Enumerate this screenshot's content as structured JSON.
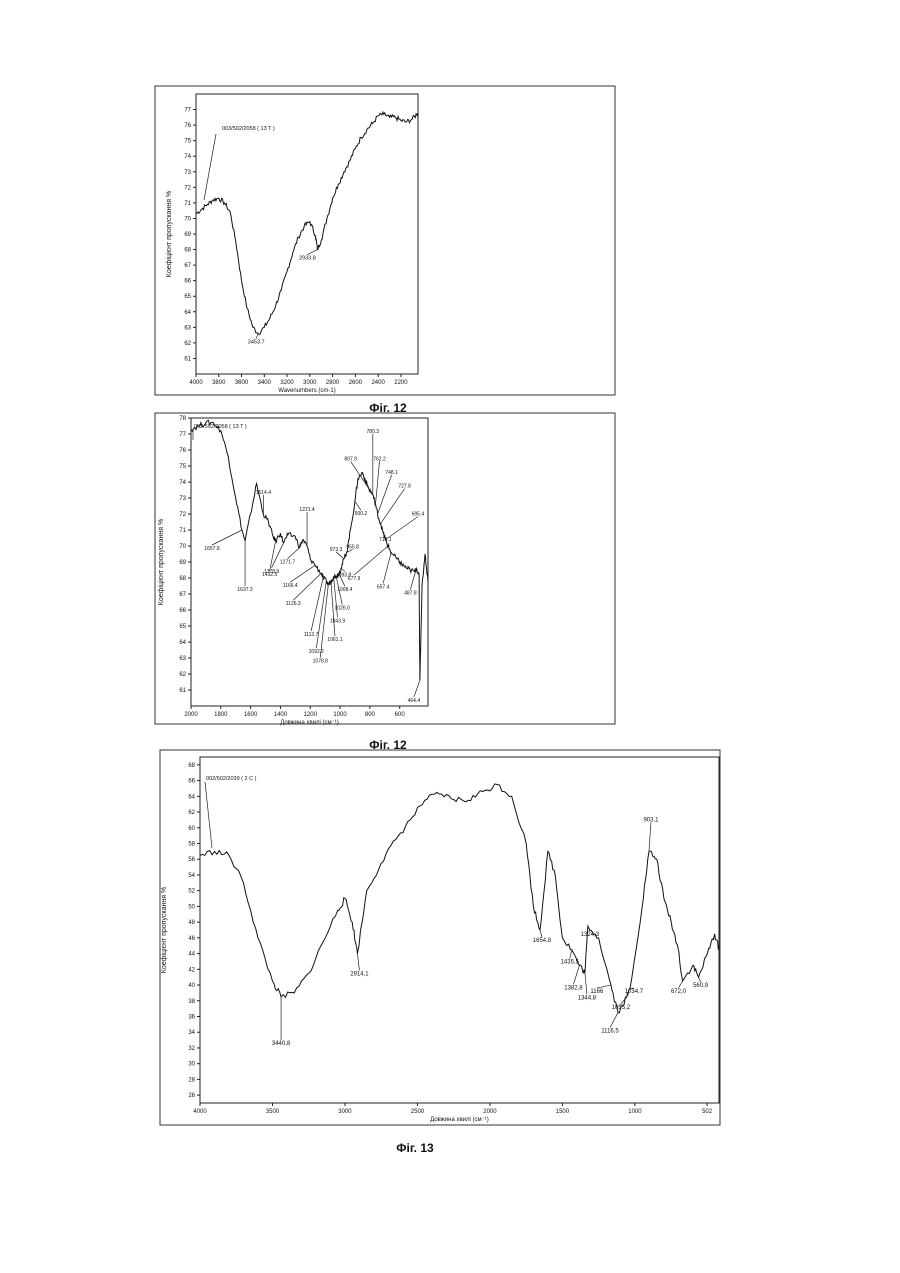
{
  "chart_data": [
    {
      "type": "line",
      "caption": "Фіг. 12",
      "ylabel": "Коефіцієнт пропускання %",
      "xlabel": "Wavenumbers (cm-1)",
      "xlim": [
        4000,
        2050
      ],
      "ylim": [
        60,
        78
      ],
      "xticks": [
        4000,
        3800,
        3600,
        3400,
        3200,
        3000,
        2800,
        2600,
        2400,
        2200
      ],
      "yticks": [
        61,
        62,
        63,
        64,
        65,
        66,
        67,
        68,
        69,
        70,
        71,
        72,
        73,
        74,
        75,
        76,
        77
      ],
      "sample": "003/502/2058 ( 13 T )",
      "series": [
        {
          "x": [
            4000,
            3950,
            3900,
            3850,
            3800,
            3750,
            3700,
            3650,
            3600,
            3550,
            3500,
            3453.7,
            3400,
            3350,
            3300,
            3250,
            3200,
            3150,
            3100,
            3050,
            3000,
            2950,
            2933.8,
            2900,
            2850,
            2800,
            2750,
            2700,
            2650,
            2600,
            2550,
            2500,
            2450,
            2400,
            2350,
            2300,
            2250,
            2200,
            2150,
            2100,
            2050
          ],
          "y": [
            70.3,
            70.6,
            70.9,
            71.2,
            71.3,
            71.0,
            70.4,
            68.5,
            66.0,
            64.2,
            63.0,
            62.6,
            63.0,
            63.6,
            64.4,
            65.4,
            66.6,
            67.8,
            68.8,
            69.5,
            69.8,
            68.9,
            68.0,
            68.6,
            70.0,
            71.3,
            72.2,
            73.0,
            73.7,
            74.5,
            75.2,
            75.7,
            76.1,
            76.6,
            76.7,
            76.5,
            76.5,
            76.3,
            76.2,
            76.4,
            76.8
          ]
        }
      ],
      "annotations": [
        {
          "label": "3453.7",
          "x": 3453.7
        },
        {
          "label": "2933.8",
          "x": 2933.8
        }
      ]
    },
    {
      "type": "line",
      "caption": "Фіг. 12",
      "ylabel": "Коефіцієнт пропускання %",
      "xlabel": "Довжина хвилі (см⁻¹)",
      "xlim": [
        2000,
        410
      ],
      "ylim": [
        60,
        78
      ],
      "xticks": [
        2000,
        1800,
        1600,
        1400,
        1200,
        1000,
        800,
        600
      ],
      "yticks": [
        61,
        62,
        63,
        64,
        65,
        66,
        67,
        68,
        69,
        70,
        71,
        72,
        73,
        74,
        75,
        76,
        77,
        78
      ],
      "sample": "002/502/2058 ( 13 T )",
      "series": [
        {
          "x": [
            2000,
            1950,
            1900,
            1850,
            1800,
            1750,
            1700,
            1657.8,
            1637.3,
            1600,
            1560,
            1514.4,
            1480,
            1450,
            1432.5,
            1400,
            1378.9,
            1350,
            1300,
            1271.7,
            1250,
            1221.4,
            1200,
            1166.4,
            1126.3,
            1113.7,
            1092.2,
            1078.8,
            1061.1,
            1043.9,
            1026.0,
            1008.4,
            993.8,
            973.3,
            955.8,
            930,
            900.2,
            880,
            850,
            830,
            807.9,
            780.3,
            762.2,
            748.1,
            727.8,
            710.1,
            695.4,
            677.9,
            657.4,
            620,
            600,
            580,
            550,
            530,
            500,
            487.8,
            470,
            464.4,
            450,
            430,
            410
          ],
          "y": [
            77.3,
            77.5,
            77.7,
            77.7,
            77.2,
            75.6,
            73.0,
            71.0,
            70.3,
            72.0,
            73.9,
            72.0,
            71.5,
            70.6,
            70.3,
            70.8,
            70.2,
            70.7,
            70.6,
            69.9,
            70.4,
            70.0,
            69.2,
            68.8,
            68.3,
            68.0,
            67.8,
            67.6,
            67.8,
            68.1,
            68.1,
            68.3,
            68.6,
            69.2,
            69.6,
            71.0,
            72.8,
            74.2,
            74.6,
            74.1,
            73.6,
            73.2,
            72.6,
            72.0,
            71.4,
            70.8,
            70.4,
            70.0,
            69.6,
            69.2,
            69.0,
            68.8,
            68.6,
            68.5,
            68.4,
            68.6,
            68.2,
            61.6,
            67.5,
            69.5,
            67.8
          ]
        }
      ],
      "annotations": [
        {
          "label": "1657.8",
          "x": 1657.8
        },
        {
          "label": "1637.3",
          "x": 1637.3
        },
        {
          "label": "1514.4",
          "x": 1514.4
        },
        {
          "label": "1432.5",
          "x": 1432.5
        },
        {
          "label": "1378.9",
          "x": 1378.9
        },
        {
          "label": "1271.7",
          "x": 1271.7
        },
        {
          "label": "1221.4",
          "x": 1221.4
        },
        {
          "label": "1166.4",
          "x": 1166.4
        },
        {
          "label": "1126.3",
          "x": 1126.3
        },
        {
          "label": "1113.7",
          "x": 1113.7
        },
        {
          "label": "1092.2",
          "x": 1092.2
        },
        {
          "label": "1078.8",
          "x": 1078.8
        },
        {
          "label": "1061.1",
          "x": 1061.1
        },
        {
          "label": "1043.9",
          "x": 1043.9
        },
        {
          "label": "1026.0",
          "x": 1026.0
        },
        {
          "label": "1008.4",
          "x": 1008.4
        },
        {
          "label": "993.8",
          "x": 993.8
        },
        {
          "label": "973.3",
          "x": 973.3
        },
        {
          "label": "955.8",
          "x": 955.8
        },
        {
          "label": "900.2",
          "x": 900.2
        },
        {
          "label": "807.9",
          "x": 807.9
        },
        {
          "label": "780.3",
          "x": 780.3
        },
        {
          "label": "762.2",
          "x": 762.2
        },
        {
          "label": "748.1",
          "x": 748.1
        },
        {
          "label": "727.8",
          "x": 727.8
        },
        {
          "label": "710.1",
          "x": 710.1
        },
        {
          "label": "695.4",
          "x": 695.4
        },
        {
          "label": "677.9",
          "x": 677.9
        },
        {
          "label": "657.4",
          "x": 657.4
        },
        {
          "label": "487.8",
          "x": 487.8
        },
        {
          "label": "464.4",
          "x": 464.4
        }
      ]
    },
    {
      "type": "line",
      "caption": "Фіг. 13",
      "ylabel": "Коефіцієнт пропускання %",
      "xlabel": "Довжина хвилі (см⁻¹)",
      "xlim": [
        4000,
        420
      ],
      "ylim": [
        25,
        69
      ],
      "xticks": [
        4000,
        3500,
        3000,
        2500,
        2000,
        1500,
        1000,
        502
      ],
      "yticks": [
        26,
        28,
        30,
        32,
        34,
        36,
        38,
        40,
        42,
        44,
        46,
        48,
        50,
        52,
        54,
        56,
        58,
        60,
        62,
        64,
        66,
        68
      ],
      "sample": "002/502/2039 ( 2 C )",
      "series": [
        {
          "x": [
            4000,
            3900,
            3800,
            3700,
            3600,
            3500,
            3440.8,
            3350,
            3250,
            3150,
            3050,
            3000,
            2950,
            2914.1,
            2850,
            2750,
            2650,
            2550,
            2450,
            2350,
            2250,
            2150,
            2050,
            1950,
            1850,
            1750,
            1700,
            1654.8,
            1600,
            1550,
            1500,
            1435.5,
            1382.8,
            1344.8,
            1324.3,
            1250,
            1166,
            1116.5,
            1055.2,
            1034.7,
            950,
            903.1,
            850,
            800,
            750,
            700,
            672.0,
            600,
            560.9,
            500,
            450,
            420
          ],
          "y": [
            56.5,
            57.0,
            56.5,
            53.0,
            46.0,
            40.5,
            38.5,
            39.0,
            41.5,
            45.5,
            49.5,
            51.0,
            48.0,
            44.0,
            52.0,
            55.5,
            58.5,
            61.0,
            63.5,
            64.3,
            63.6,
            63.5,
            64.6,
            65.5,
            64.0,
            58.0,
            50.0,
            47.0,
            57.0,
            54.0,
            46.0,
            44.5,
            42.5,
            41.5,
            47.5,
            46.0,
            40.0,
            36.5,
            38.5,
            39.5,
            50.0,
            57.0,
            56.0,
            51.0,
            48.0,
            44.5,
            40.5,
            42.5,
            41.0,
            44.0,
            46.5,
            44.5
          ]
        }
      ],
      "annotations": [
        {
          "label": "3440,8",
          "x": 3440.8
        },
        {
          "label": "2914,1",
          "x": 2914.1
        },
        {
          "label": "1654,8",
          "x": 1654.8
        },
        {
          "label": "1435,5",
          "x": 1435.5
        },
        {
          "label": "1382,8",
          "x": 1382.8
        },
        {
          "label": "1344,8",
          "x": 1344.8
        },
        {
          "label": "1324,3",
          "x": 1324.3
        },
        {
          "label": "1166",
          "x": 1166
        },
        {
          "label": "1116,5",
          "x": 1116.5
        },
        {
          "label": "1055,2",
          "x": 1055.2
        },
        {
          "label": "1034,7",
          "x": 1034.7
        },
        {
          "label": "903,1",
          "x": 903.1
        },
        {
          "label": "672,0",
          "x": 672.0
        },
        {
          "label": "560,9",
          "x": 560.9
        }
      ]
    }
  ]
}
